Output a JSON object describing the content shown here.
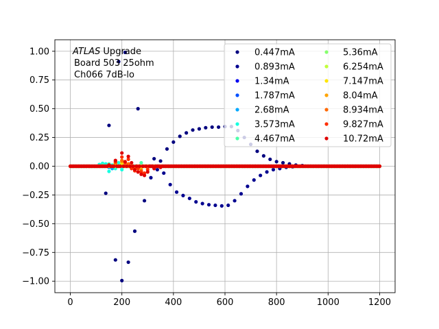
{
  "chart_data": {
    "type": "scatter",
    "xlim": [
      -60,
      1260
    ],
    "ylim": [
      -1.1,
      1.1
    ],
    "x_ticks": [
      0,
      200,
      400,
      600,
      800,
      1000,
      1200
    ],
    "y_ticks": [
      -1.0,
      -0.75,
      -0.5,
      -0.25,
      0.0,
      0.25,
      0.5,
      0.75,
      1.0
    ],
    "x_tick_labels": [
      "0",
      "200",
      "400",
      "600",
      "800",
      "1000",
      "1200"
    ],
    "y_tick_labels": [
      "−1.00",
      "−0.75",
      "−0.50",
      "−0.25",
      "0.00",
      "0.25",
      "0.50",
      "0.75",
      "1.00"
    ],
    "grid": true,
    "legend_position": "top-right",
    "legend_columns": 2,
    "annotation": {
      "line1_italic": "ATLAS",
      "line1_rest": "Upgrade",
      "line2": "Board 503 25ohm",
      "line3": "Ch066 7dB-lo"
    },
    "series": [
      {
        "name": "0.447mA",
        "color": "#00007f",
        "x": [
          0,
          6.25,
          12.5,
          25,
          50,
          75,
          100,
          112.5,
          125,
          137.5,
          150,
          162.5,
          175,
          187.5,
          200,
          212.5,
          225,
          237.5,
          250,
          262.5,
          275,
          287.5,
          300,
          325,
          350,
          375,
          400,
          425,
          450,
          475,
          500,
          525,
          550,
          575,
          600,
          625,
          650,
          675,
          700,
          725,
          750,
          775,
          800,
          825,
          850,
          875,
          900,
          950,
          1000,
          1050,
          1100,
          1150,
          1200
        ],
        "y": [
          0.0,
          0.0,
          0.0,
          0.0,
          0.0,
          0.0,
          0.0,
          0.0,
          0.0,
          -0.235,
          0.355,
          0.0,
          -0.815,
          0.91,
          -0.995,
          0.99,
          -0.835,
          0.0,
          -0.565,
          0.5,
          0.0,
          -0.3,
          0.0,
          0.065,
          0.045,
          0.15,
          0.21,
          0.26,
          0.29,
          0.315,
          0.325,
          0.335,
          0.34,
          0.34,
          0.345,
          0.345,
          0.31,
          0.25,
          0.19,
          0.13,
          0.09,
          0.06,
          0.04,
          0.03,
          0.02,
          0.01,
          0.005,
          0.0,
          0.0,
          0.0,
          0.0,
          0.0,
          0.0
        ]
      },
      {
        "name": "0.893mA",
        "color": "#00008f",
        "x": [
          212.5,
          237.5,
          262.5,
          287.5,
          312.5,
          337.5,
          362.5,
          387.5,
          412.5,
          437.5,
          462.5,
          487.5,
          512.5,
          537.5,
          562.5,
          587.5,
          612.5,
          637.5,
          662.5,
          687.5,
          712.5,
          737.5,
          762.5,
          787.5,
          812.5,
          837.5,
          862.5,
          887.5
        ],
        "y": [
          0.0,
          0.0,
          0.0,
          0.0,
          -0.1,
          -0.03,
          -0.06,
          -0.16,
          -0.225,
          -0.255,
          -0.28,
          -0.31,
          -0.325,
          -0.335,
          -0.34,
          -0.345,
          -0.34,
          -0.3,
          -0.24,
          -0.175,
          -0.12,
          -0.08,
          -0.05,
          -0.03,
          -0.02,
          -0.01,
          -0.005,
          0.0
        ]
      },
      {
        "name": "1.34mA",
        "color": "#0000f1",
        "x": [
          0,
          50,
          100,
          150,
          200,
          250,
          300,
          350,
          400,
          450,
          500,
          550,
          600,
          650,
          700,
          750,
          800,
          850,
          900,
          950,
          1000,
          1050,
          1100,
          1150,
          1200
        ],
        "y": [
          0.0,
          0.0,
          0.0,
          0.0,
          0.0,
          0.0,
          0.0,
          0.0,
          0.0,
          0.0,
          0.0,
          0.0,
          0.0,
          0.0,
          0.0,
          0.0,
          0.0,
          0.0,
          0.0,
          0.0,
          0.0,
          0.0,
          0.0,
          0.0,
          0.0
        ]
      },
      {
        "name": "1.787mA",
        "color": "#0050ff",
        "x": [
          0,
          50,
          100,
          150,
          200,
          250,
          300,
          350,
          400,
          450,
          500,
          550,
          600,
          650,
          700,
          750,
          800,
          850,
          900,
          950,
          1000,
          1050,
          1100,
          1150,
          1200
        ],
        "y": [
          0.0,
          0.0,
          0.0,
          0.0,
          0.0,
          0.0,
          0.0,
          0.0,
          0.0,
          0.0,
          0.0,
          0.0,
          0.0,
          0.0,
          0.0,
          0.0,
          0.0,
          0.0,
          0.0,
          0.0,
          0.0,
          0.0,
          0.0,
          0.0,
          0.0
        ]
      },
      {
        "name": "2.68mA",
        "color": "#00a8ff",
        "x": [
          0,
          50,
          100,
          112.5,
          125,
          137.5,
          150,
          162.5,
          175,
          187.5,
          200,
          225,
          250,
          300,
          400,
          500,
          600,
          700,
          800,
          900,
          1000,
          1100,
          1200
        ],
        "y": [
          0.0,
          0.0,
          0.0,
          0.01,
          0.02,
          0.015,
          -0.01,
          -0.02,
          0.02,
          0.0,
          0.0,
          0.0,
          0.0,
          0.0,
          0.0,
          0.0,
          0.0,
          0.0,
          0.0,
          0.0,
          0.0,
          0.0,
          0.0
        ]
      },
      {
        "name": "3.573mA",
        "color": "#16ffe1",
        "x": [
          0,
          50,
          100,
          112.5,
          125,
          137.5,
          150,
          162.5,
          175,
          187.5,
          200,
          225,
          250,
          275,
          300,
          400,
          500,
          600,
          700,
          800,
          900,
          1000,
          1100,
          1200
        ],
        "y": [
          0.0,
          0.0,
          0.0,
          0.015,
          0.025,
          0.02,
          -0.045,
          0.01,
          -0.02,
          0.03,
          -0.03,
          0.0,
          0.0,
          0.0,
          0.0,
          0.0,
          0.0,
          0.0,
          0.0,
          0.0,
          0.0,
          0.0,
          0.0,
          0.0
        ]
      },
      {
        "name": "4.467mA",
        "color": "#4dffaa",
        "x": [
          0,
          50,
          100,
          125,
          150,
          175,
          200,
          225,
          250,
          275,
          300,
          400,
          500,
          600,
          700,
          800,
          900,
          1000,
          1100,
          1200
        ],
        "y": [
          0.0,
          0.0,
          0.0,
          0.01,
          0.02,
          -0.01,
          0.02,
          0.0,
          0.0,
          0.03,
          0.0,
          0.0,
          0.0,
          0.0,
          0.0,
          0.0,
          0.0,
          0.0,
          0.0,
          0.0
        ]
      },
      {
        "name": "5.36mA",
        "color": "#86ff6e",
        "x": [
          0,
          50,
          100,
          150,
          175,
          200,
          225,
          250,
          275,
          300,
          400,
          500,
          600,
          700,
          800,
          900,
          1000,
          1100,
          1200
        ],
        "y": [
          0.0,
          0.0,
          0.0,
          0.0,
          0.015,
          0.02,
          0.0,
          -0.01,
          0.0,
          0.0,
          0.0,
          0.0,
          0.0,
          0.0,
          0.0,
          0.0,
          0.0,
          0.0,
          0.0
        ]
      },
      {
        "name": "6.254mA",
        "color": "#c1ff3a",
        "x": [
          0,
          50,
          100,
          150,
          175,
          200,
          225,
          250,
          275,
          300,
          400,
          500,
          600,
          700,
          800,
          900,
          1000,
          1100,
          1200
        ],
        "y": [
          0.0,
          0.0,
          0.0,
          0.0,
          0.02,
          0.01,
          0.0,
          -0.01,
          0.0,
          0.0,
          0.0,
          0.0,
          0.0,
          0.0,
          0.0,
          0.0,
          0.0,
          0.0,
          0.0
        ]
      },
      {
        "name": "7.147mA",
        "color": "#ffe600",
        "x": [
          0,
          50,
          100,
          150,
          175,
          200,
          225,
          250,
          275,
          300,
          400,
          500,
          600,
          700,
          800,
          900,
          1000,
          1100,
          1200
        ],
        "y": [
          0.0,
          0.0,
          0.0,
          0.0,
          0.02,
          0.03,
          0.0,
          -0.02,
          -0.01,
          0.0,
          0.0,
          0.0,
          0.0,
          0.0,
          0.0,
          0.0,
          0.0,
          0.0,
          0.0
        ]
      },
      {
        "name": "8.04mA",
        "color": "#ffa400",
        "x": [
          0,
          50,
          100,
          150,
          175,
          200,
          225,
          250,
          275,
          300,
          350,
          400,
          500,
          600,
          700,
          800,
          900,
          1000,
          1100,
          1200
        ],
        "y": [
          0.0,
          0.0,
          0.0,
          0.01,
          0.025,
          0.04,
          0.0,
          -0.02,
          -0.03,
          0.0,
          0.0,
          0.0,
          0.0,
          0.0,
          0.0,
          0.0,
          0.0,
          0.0,
          0.0,
          0.0
        ]
      },
      {
        "name": "8.934mA",
        "color": "#ff6800",
        "x": [
          0,
          50,
          100,
          150,
          175,
          200,
          225,
          250,
          275,
          300,
          350,
          400,
          500,
          600,
          700,
          800,
          900,
          1000,
          1100,
          1200
        ],
        "y": [
          0.0,
          0.0,
          0.0,
          0.01,
          0.03,
          0.05,
          0.02,
          -0.03,
          -0.04,
          -0.01,
          0.0,
          0.0,
          0.0,
          0.0,
          0.0,
          0.0,
          0.0,
          0.0,
          0.0,
          0.0
        ]
      },
      {
        "name": "9.827mA",
        "color": "#ff2e00",
        "x": [
          0,
          50,
          100,
          150,
          175,
          200,
          212.5,
          225,
          237.5,
          250,
          262.5,
          275,
          287.5,
          300,
          325,
          350,
          400,
          500,
          600,
          700,
          800,
          900,
          1000,
          1100,
          1200
        ],
        "y": [
          0.0,
          0.0,
          0.0,
          0.01,
          0.04,
          0.08,
          0.03,
          0.06,
          -0.02,
          -0.04,
          -0.02,
          -0.05,
          -0.06,
          -0.03,
          -0.01,
          0.0,
          0.0,
          0.0,
          0.0,
          0.0,
          0.0,
          0.0,
          0.0,
          0.0,
          0.0
        ]
      },
      {
        "name": "10.72mA",
        "color": "#df0000",
        "x": [
          0,
          50,
          100,
          150,
          175,
          200,
          212.5,
          225,
          237.5,
          250,
          262.5,
          275,
          287.5,
          300,
          325,
          350,
          400,
          450,
          500,
          550,
          600,
          650,
          700,
          750,
          800,
          850,
          900,
          950,
          1000,
          1050,
          1100,
          1150,
          1200
        ],
        "y": [
          0.0,
          0.0,
          0.0,
          0.01,
          0.05,
          0.115,
          0.04,
          0.085,
          0.03,
          -0.03,
          -0.05,
          -0.07,
          -0.08,
          -0.05,
          -0.02,
          -0.01,
          0.0,
          0.0,
          0.0,
          0.0,
          0.0,
          0.0,
          0.0,
          0.0,
          0.0,
          0.0,
          0.0,
          0.0,
          0.0,
          0.0,
          0.0,
          0.0,
          0.0
        ]
      }
    ]
  }
}
